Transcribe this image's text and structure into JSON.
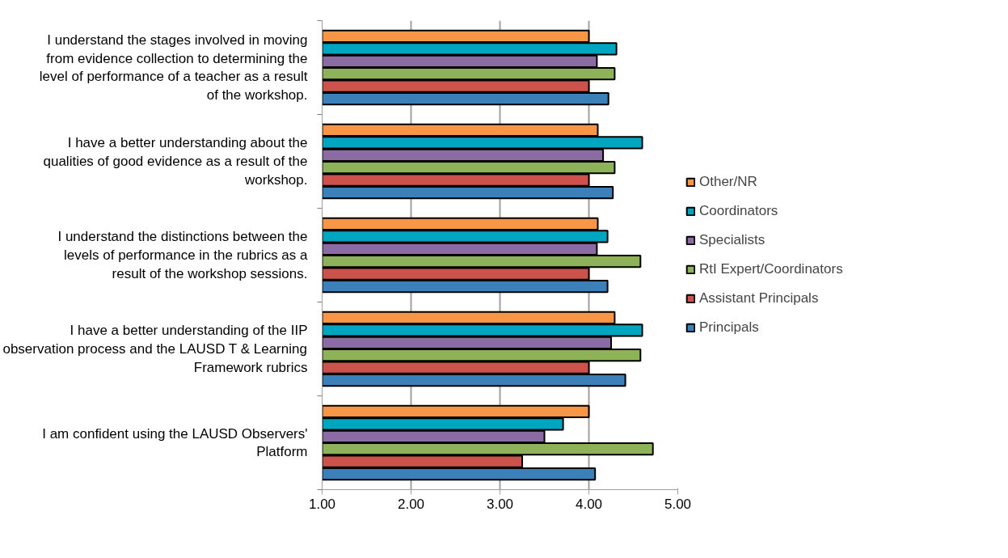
{
  "chart_data": {
    "type": "bar",
    "orientation": "horizontal",
    "categories": [
      "I understand the stages involved in moving from evidence collection to determining the level of performance of a teacher as a result of the workshop.",
      "I have a better understanding about the qualities of good evidence as a result of the workshop.",
      "I understand the distinctions between the levels of performance in the rubrics as a result of the workshop sessions.",
      "I have a better understanding of the IIP observation process and the LAUSD T & Learning Framework rubrics",
      "I am confident using the LAUSD Observers' Platform"
    ],
    "series": [
      {
        "name": "Other/NR",
        "color": "#f79646",
        "values": [
          4.0,
          4.1,
          4.1,
          4.29,
          4.0
        ]
      },
      {
        "name": "Coordinators",
        "color": "#00a6c0",
        "values": [
          4.31,
          4.6,
          4.21,
          4.6,
          3.71
        ]
      },
      {
        "name": "Specialists",
        "color": "#8b6ba3",
        "values": [
          4.09,
          4.16,
          4.09,
          4.25,
          3.5
        ]
      },
      {
        "name": "RtI Expert/Coordinators",
        "color": "#8db25a",
        "values": [
          4.29,
          4.29,
          4.58,
          4.58,
          4.72
        ]
      },
      {
        "name": "Assistant Principals",
        "color": "#cc524c",
        "values": [
          4.0,
          4.0,
          4.0,
          4.0,
          3.25
        ]
      },
      {
        "name": "Principals",
        "color": "#3b80b8",
        "values": [
          4.22,
          4.27,
          4.21,
          4.41,
          4.07
        ]
      }
    ],
    "xlim": [
      1,
      5
    ],
    "xticks": [
      {
        "value": 1,
        "label": "1.00"
      },
      {
        "value": 2,
        "label": "2.00"
      },
      {
        "value": 3,
        "label": "3.00"
      },
      {
        "value": 4,
        "label": "4.00"
      },
      {
        "value": 5,
        "label": "5.00"
      }
    ],
    "grid": "x",
    "legend": "right"
  }
}
